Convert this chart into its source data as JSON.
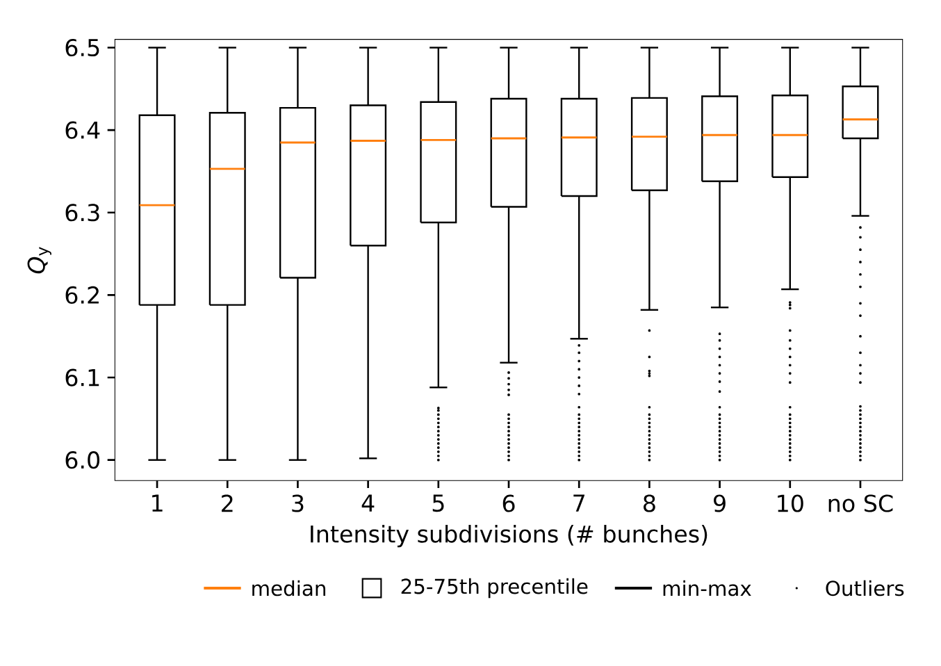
{
  "chart_data": {
    "type": "box",
    "xlabel": "Intensity subdivisions (# bunches)",
    "ylabel": "*Q*$_{y}$",
    "categories": [
      "1",
      "2",
      "3",
      "4",
      "5",
      "6",
      "7",
      "8",
      "9",
      "10",
      "no SC"
    ],
    "ylim": [
      5.975,
      6.51
    ],
    "yticks": [
      {
        "value": 6.0,
        "label": "6.0"
      },
      6.1,
      6.2,
      6.3,
      6.4,
      6.5
    ],
    "annotations": [
      "median",
      "25-75th precentile",
      "min-max",
      "Outliers"
    ],
    "boxes": [
      {
        "low": 6.0,
        "q1": 6.188,
        "median": 6.309,
        "q3": 6.418,
        "high": 6.5
      },
      {
        "low": 6.0,
        "q1": 6.188,
        "median": 6.353,
        "q3": 6.421,
        "high": 6.5
      },
      {
        "low": 6.0,
        "q1": 6.221,
        "median": 6.385,
        "q3": 6.427,
        "high": 6.5
      },
      {
        "low": 6.002,
        "q1": 6.26,
        "median": 6.387,
        "q3": 6.43,
        "high": 6.5
      },
      {
        "low": 6.088,
        "q1": 6.288,
        "median": 6.388,
        "q3": 6.434,
        "high": 6.5,
        "outliers": [
          6.0,
          6.005,
          6.01,
          6.015,
          6.02,
          6.025,
          6.03,
          6.035,
          6.04,
          6.045,
          6.05,
          6.055,
          6.06,
          6.063
        ]
      },
      {
        "low": 6.118,
        "q1": 6.307,
        "median": 6.39,
        "q3": 6.438,
        "high": 6.5,
        "outliers": [
          6.0,
          6.005,
          6.01,
          6.015,
          6.02,
          6.025,
          6.03,
          6.035,
          6.04,
          6.045,
          6.05,
          6.055,
          6.079,
          6.085,
          6.092,
          6.099,
          6.106
        ]
      },
      {
        "low": 6.147,
        "q1": 6.32,
        "median": 6.391,
        "q3": 6.438,
        "high": 6.5,
        "outliers": [
          6.0,
          6.005,
          6.01,
          6.015,
          6.02,
          6.025,
          6.03,
          6.035,
          6.04,
          6.045,
          6.05,
          6.055,
          6.064,
          6.08,
          6.09,
          6.1,
          6.11,
          6.12,
          6.13,
          6.139
        ]
      },
      {
        "low": 6.182,
        "q1": 6.327,
        "median": 6.392,
        "q3": 6.439,
        "high": 6.5,
        "outliers": [
          6.0,
          6.005,
          6.01,
          6.015,
          6.02,
          6.025,
          6.03,
          6.035,
          6.04,
          6.045,
          6.05,
          6.055,
          6.064,
          6.102,
          6.105,
          6.108,
          6.125,
          6.157
        ]
      },
      {
        "low": 6.185,
        "q1": 6.338,
        "median": 6.394,
        "q3": 6.441,
        "high": 6.5,
        "outliers": [
          6.0,
          6.005,
          6.01,
          6.015,
          6.02,
          6.025,
          6.03,
          6.035,
          6.04,
          6.045,
          6.05,
          6.055,
          6.064,
          6.083,
          6.095,
          6.105,
          6.115,
          6.125,
          6.135,
          6.145,
          6.153
        ]
      },
      {
        "low": 6.207,
        "q1": 6.343,
        "median": 6.394,
        "q3": 6.442,
        "high": 6.5,
        "outliers": [
          6.0,
          6.005,
          6.01,
          6.015,
          6.02,
          6.025,
          6.03,
          6.035,
          6.04,
          6.045,
          6.05,
          6.055,
          6.064,
          6.094,
          6.105,
          6.115,
          6.125,
          6.135,
          6.145,
          6.157,
          6.184,
          6.188,
          6.191
        ]
      },
      {
        "low": 6.296,
        "q1": 6.39,
        "median": 6.413,
        "q3": 6.453,
        "high": 6.5,
        "outliers": [
          6.0,
          6.005,
          6.01,
          6.015,
          6.02,
          6.025,
          6.03,
          6.035,
          6.04,
          6.045,
          6.05,
          6.055,
          6.06,
          6.065,
          6.094,
          6.105,
          6.115,
          6.13,
          6.15,
          6.175,
          6.19,
          6.21,
          6.225,
          6.24,
          6.255,
          6.27,
          6.282
        ]
      }
    ]
  }
}
